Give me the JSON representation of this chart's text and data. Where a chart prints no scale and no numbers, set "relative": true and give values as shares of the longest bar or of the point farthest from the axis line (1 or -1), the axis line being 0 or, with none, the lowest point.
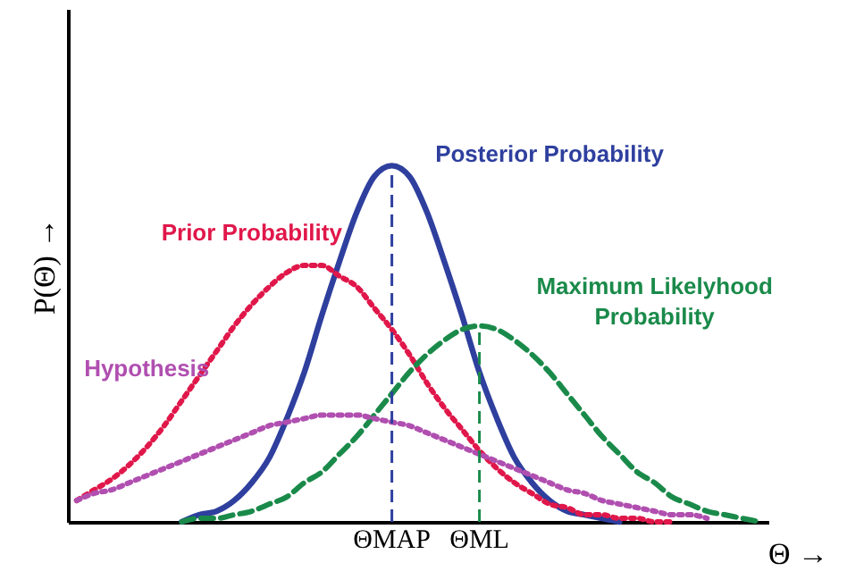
{
  "chart_data": {
    "type": "line",
    "relative": true,
    "ylabel": "P(Θ) →",
    "xlabel": "Θ →",
    "tick_labels": "x",
    "grid": false,
    "categories": [
      null,
      null,
      null,
      null,
      null,
      null,
      null,
      null,
      null,
      null,
      null,
      null,
      null,
      null,
      null,
      null,
      null,
      null,
      "ΘMAP",
      null,
      null,
      null,
      null,
      "ΘML",
      null,
      null,
      null,
      null,
      null,
      null,
      null,
      null,
      null,
      null,
      null,
      null,
      null,
      null,
      null,
      null
    ],
    "series": [
      {
        "name": "Posterior Probability",
        "color": "#2e3f9e",
        "line_style": "solid",
        "values": [
          null,
          null,
          null,
          null,
          null,
          null,
          0,
          0.02,
          0.03,
          0.06,
          0.11,
          0.18,
          0.29,
          0.42,
          0.58,
          0.73,
          0.87,
          0.97,
          1,
          0.97,
          0.87,
          0.73,
          0.58,
          0.42,
          0.29,
          0.18,
          0.11,
          0.06,
          0.03,
          0.02,
          0.01,
          0,
          null,
          null,
          null,
          null,
          null,
          null,
          null,
          null
        ]
      },
      {
        "name": "Prior Probability",
        "color": "#e0174a",
        "line_style": "dotted",
        "values": [
          0.06,
          0.09,
          0.12,
          0.16,
          0.21,
          0.27,
          0.34,
          0.41,
          0.48,
          0.55,
          0.61,
          0.66,
          0.7,
          0.72,
          0.72,
          0.69,
          0.66,
          0.6,
          0.54,
          0.47,
          0.39,
          0.32,
          0.26,
          0.2,
          0.15,
          0.11,
          0.08,
          0.05,
          0.04,
          0.02,
          0.02,
          0.01,
          0.01,
          0,
          0,
          null,
          null,
          null,
          null,
          null
        ]
      },
      {
        "name": "Maximum Likelyhood Probability",
        "color": "#1a8a4a",
        "line_style": "dashed",
        "values": [
          null,
          null,
          null,
          null,
          null,
          null,
          0,
          0.01,
          0.01,
          0.02,
          0.03,
          0.05,
          0.07,
          0.11,
          0.14,
          0.19,
          0.24,
          0.3,
          0.36,
          0.42,
          0.47,
          0.51,
          0.54,
          0.55,
          0.54,
          0.51,
          0.47,
          0.42,
          0.36,
          0.3,
          0.24,
          0.19,
          0.14,
          0.11,
          0.07,
          0.05,
          0.03,
          0.02,
          0.01,
          0
        ]
      },
      {
        "name": "Hypothesis",
        "color": "#b04fb0",
        "line_style": "dotted",
        "values": [
          0.06,
          0.08,
          0.09,
          0.11,
          0.13,
          0.15,
          0.17,
          0.19,
          0.21,
          0.23,
          0.25,
          0.27,
          0.28,
          0.29,
          0.3,
          0.3,
          0.3,
          0.29,
          0.28,
          0.27,
          0.25,
          0.23,
          0.21,
          0.19,
          0.17,
          0.15,
          0.13,
          0.11,
          0.09,
          0.08,
          0.06,
          0.05,
          0.04,
          0.03,
          0.02,
          0.02,
          0.01,
          null,
          null,
          null
        ]
      }
    ],
    "ref_lines": [
      {
        "axis": "x",
        "value": "ΘMAP",
        "color": "#2e3f9e",
        "line_style": "dashed"
      },
      {
        "axis": "x",
        "value": "ΘML",
        "color": "#1a8a4a",
        "line_style": "dashed"
      }
    ]
  }
}
